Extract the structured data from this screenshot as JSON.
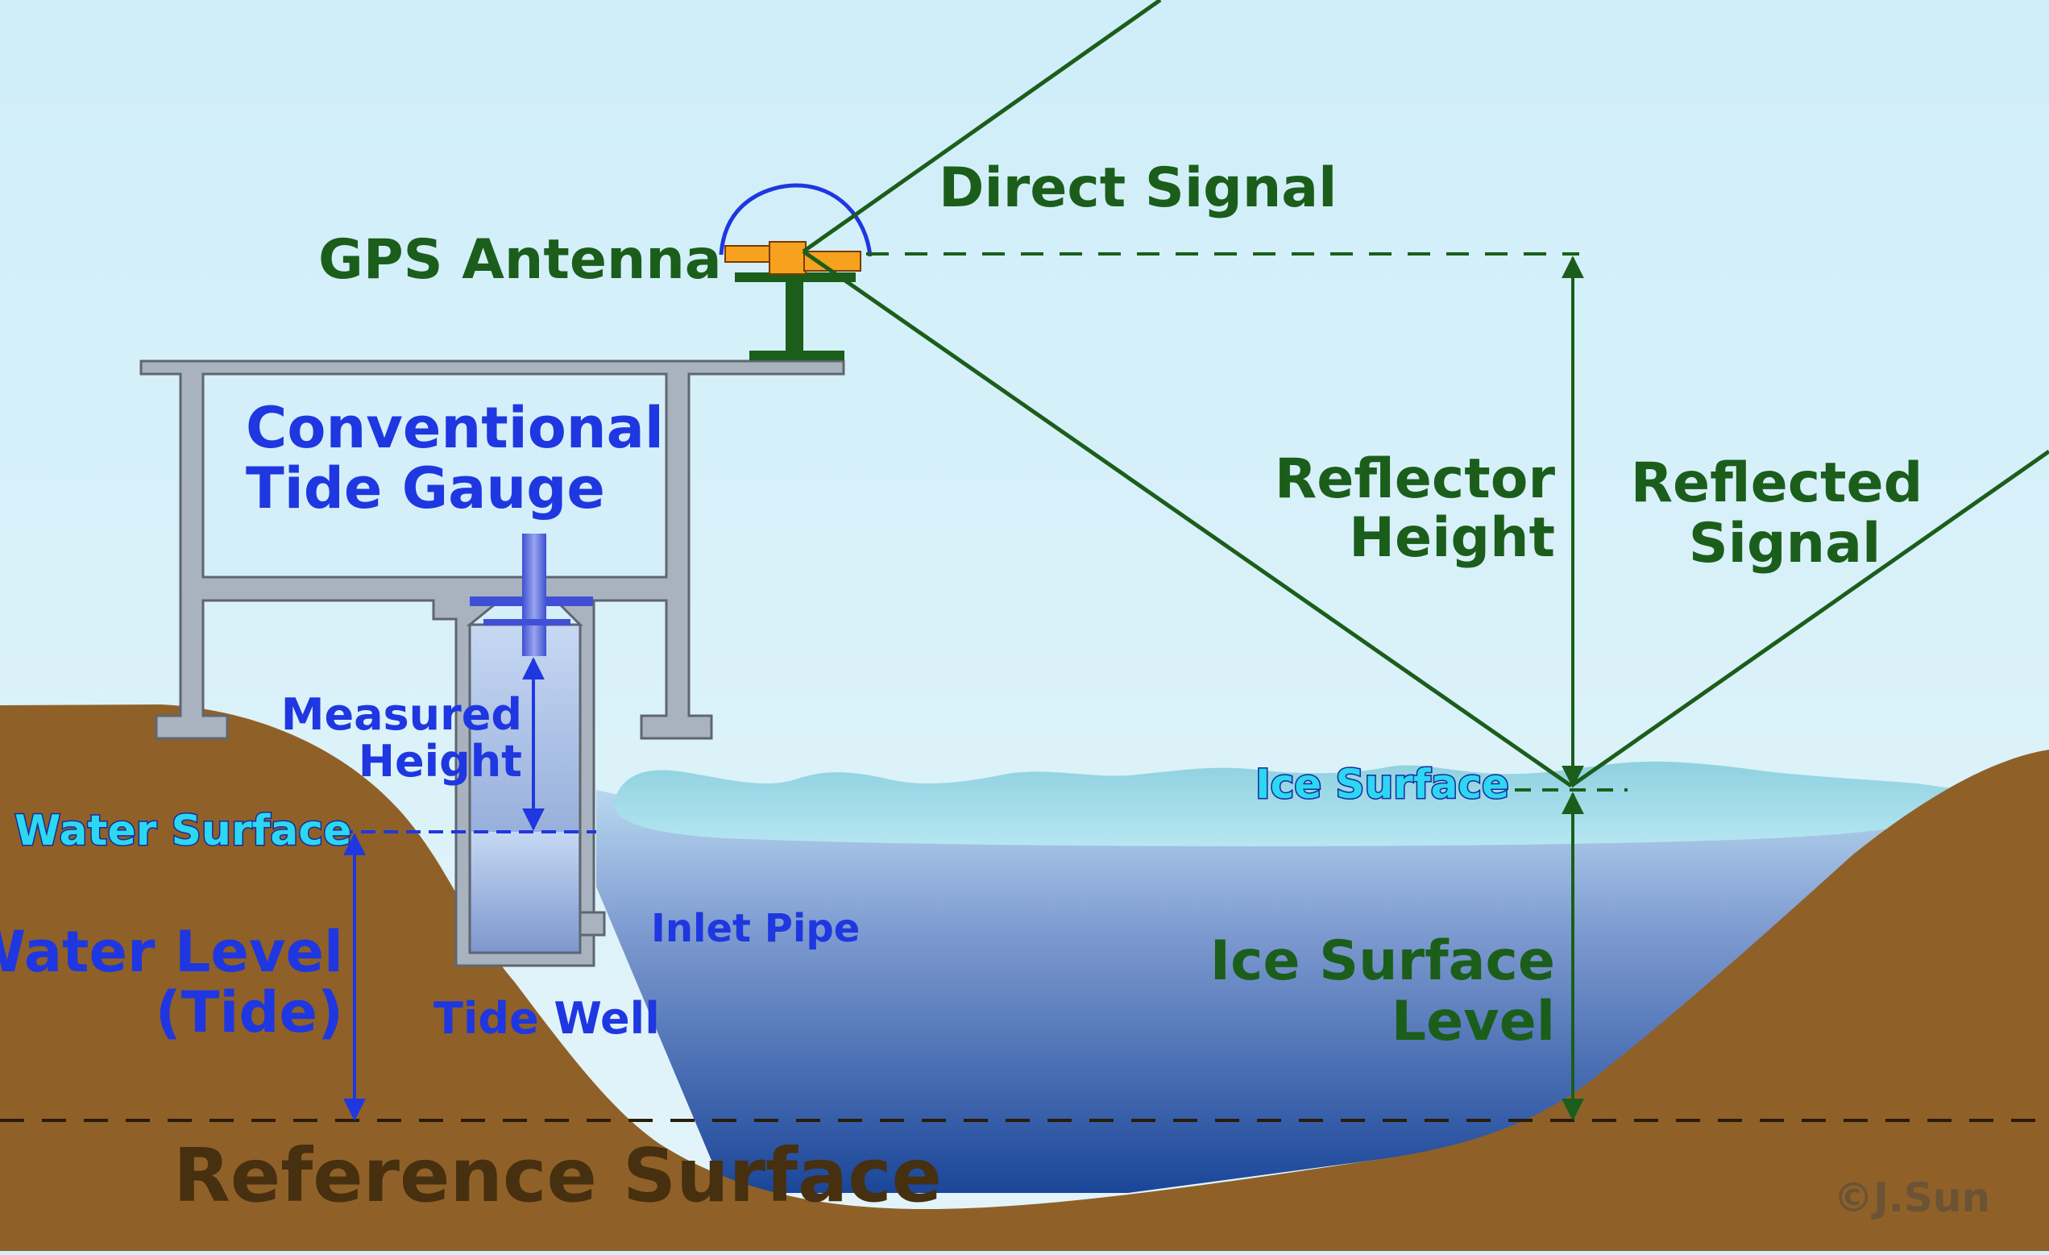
{
  "labels": {
    "direct_signal": "Direct Signal",
    "gps_antenna": "GPS Antenna",
    "conventional_line1": "Conventional",
    "conventional_line2": "Tide Gauge",
    "reflector_line1": "Reflector",
    "reflector_line2": "Height",
    "reflected_line1": "Reflected",
    "reflected_line2": "Signal",
    "measured_line1": "Measured",
    "measured_line2": "Height",
    "water_surface": "Water Surface",
    "ice_surface": "Ice Surface",
    "inlet_pipe": "Inlet Pipe",
    "water_level_line1": "Water Level",
    "water_level_line2": "(Tide)",
    "tide_well": "Tide Well",
    "ice_level_line1": "Ice Surface",
    "ice_level_line2": "Level",
    "reference_surface": "Reference Surface",
    "copyright": "©J.Sun"
  },
  "colors": {
    "sky": "#d2effa",
    "ground": "#8f6128",
    "structure": "#a9b3c0",
    "signal": "#1b5e1b",
    "tide_gauge_text": "#1f37e0",
    "surface_label": "#2cd7f2",
    "ice": "#a8e0ec",
    "water_deep": "#1d479b",
    "antenna": "#f6a21e"
  },
  "icons": {
    "antenna": "gps-antenna-icon"
  }
}
